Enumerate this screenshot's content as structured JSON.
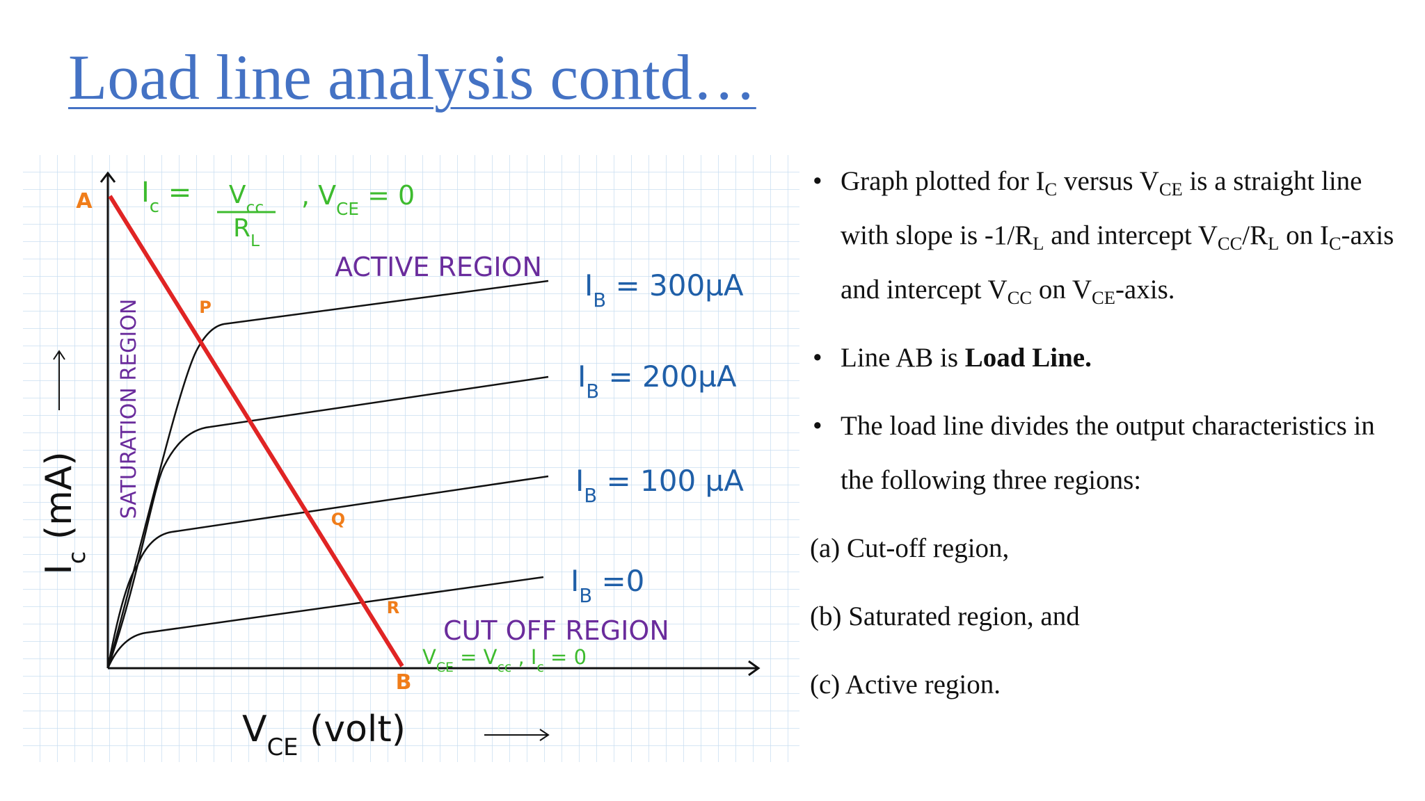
{
  "header": {
    "title": "Load line analysis contd…"
  },
  "diagram": {
    "points": [
      "A",
      "P",
      "Q",
      "R",
      "B"
    ],
    "saturation_intercept": {
      "lhs": [
        "I",
        {
          "sub": "c"
        },
        " ="
      ],
      "numerator": [
        "V",
        {
          "sub": "cc"
        }
      ],
      "denominator": [
        "R",
        {
          "sub": "L"
        }
      ],
      "rest": [
        ", V",
        {
          "sub": "CE"
        },
        " = 0"
      ]
    },
    "active_region": "ACTIVE REGION",
    "saturation_region": "SATURATION REGION",
    "base_currents": [
      [
        "I",
        {
          "sub": "B"
        },
        " = 300µA"
      ],
      [
        "I",
        {
          "sub": "B"
        },
        " = 200µA"
      ],
      [
        "I",
        {
          "sub": "B"
        },
        " = 100 µA"
      ],
      [
        "I",
        {
          "sub": "B"
        },
        " =0"
      ]
    ],
    "cutoff_region": "CUT OFF REGION",
    "cutoff_intercept": [
      "V",
      {
        "sub": "CE"
      },
      " = V",
      {
        "sub": "cc"
      },
      " , I",
      {
        "sub": "c"
      },
      " = 0"
    ],
    "x_axis_label": [
      "V",
      {
        "sub": "CE"
      },
      " (volt)"
    ],
    "y_axis_label": [
      "I",
      {
        "sub": "c"
      },
      " (mA)"
    ]
  },
  "bullets": [
    [
      "Graph plotted for I",
      {
        "sub": "C"
      },
      " versus V",
      {
        "sub": "CE"
      },
      " is a straight line with slope is -1/R",
      {
        "sub": "L"
      },
      " and intercept V",
      {
        "sub": "CC"
      },
      "/R",
      {
        "sub": "L"
      },
      " on I",
      {
        "sub": "C"
      },
      "-axis and intercept  V",
      {
        "sub": "CC"
      },
      " on V",
      {
        "sub": "CE"
      },
      "-axis."
    ],
    [
      "Line AB is ",
      {
        "b": "Load Line."
      }
    ],
    [
      "The load line divides the output characteristics in the following three regions:"
    ]
  ],
  "items": [
    "(a) Cut-off region,",
    "(b) Saturated region, and",
    "(c) Active region."
  ]
}
